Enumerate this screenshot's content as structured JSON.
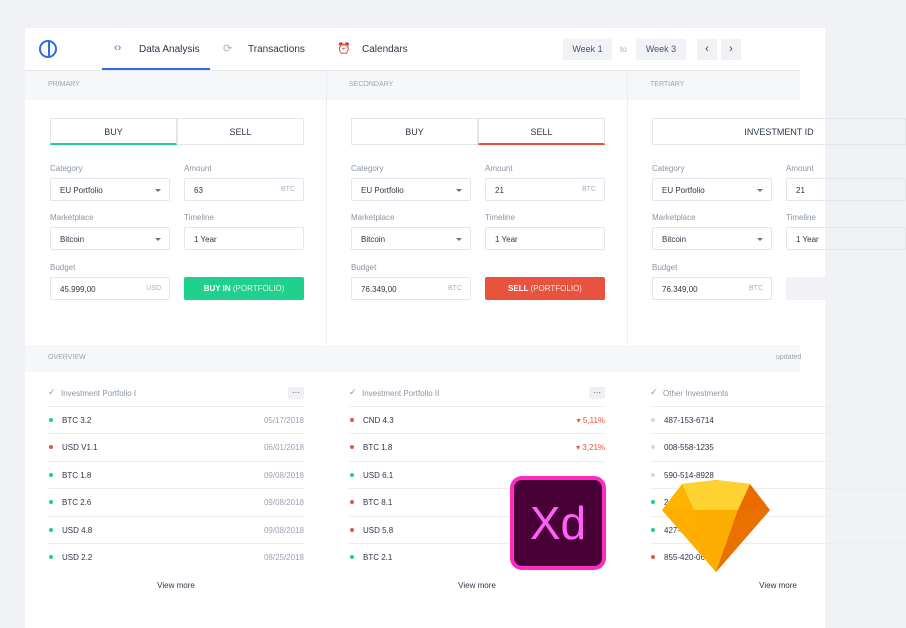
{
  "header": {
    "tabs": [
      "Data Analysis",
      "Transactions",
      "Calendars"
    ],
    "range_from": "Week 1",
    "range_sep": "to",
    "range_to": "Week 3"
  },
  "panels": [
    {
      "label": "PRIMARY",
      "toggle": [
        "BUY",
        "SELL"
      ],
      "category_label": "Category",
      "category": "EU Portfolio",
      "amount_label": "Amount",
      "amount": "63",
      "amount_unit": "BTC",
      "marketplace_label": "Marketplace",
      "marketplace": "Bitcoin",
      "timeline_label": "Timeline",
      "timeline": "1 Year",
      "budget_label": "Budget",
      "budget": "45.999,00",
      "budget_unit": "USD",
      "button": "BUY IN",
      "button_note": "(PORTFOLIO)"
    },
    {
      "label": "SECONDARY",
      "toggle": [
        "BUY",
        "SELL"
      ],
      "category_label": "Category",
      "category": "EU Portfolio",
      "amount_label": "Amount",
      "amount": "21",
      "amount_unit": "BTC",
      "marketplace_label": "Marketplace",
      "marketplace": "Bitcoin",
      "timeline_label": "Timeline",
      "timeline": "1 Year",
      "budget_label": "Budget",
      "budget": "76.349,00",
      "budget_unit": "BTC",
      "button": "SELL",
      "button_note": "(PORTFOLIO)"
    },
    {
      "label": "TERTIARY",
      "toggle": [
        "INVESTMENT ID"
      ],
      "category_label": "Category",
      "category": "EU Portfolio",
      "amount_label": "Amount",
      "amount": "21",
      "marketplace_label": "Marketplace",
      "marketplace": "Bitcoin",
      "timeline_label": "Timeline",
      "timeline": "1 Year",
      "budget_label": "Budget",
      "budget": "76.349,00",
      "budget_unit": "BTC"
    }
  ],
  "overview": {
    "label": "OVERVIEW",
    "note": "updated",
    "more": "View more",
    "lists": [
      {
        "title": "Investment Portfolio I",
        "menu": "···",
        "rows": [
          {
            "name": "BTC 3.2",
            "value": "05/17/2018"
          },
          {
            "name": "USD V1.1",
            "value": "06/01/2018"
          },
          {
            "name": "BTC 1.8",
            "value": "09/08/2018"
          },
          {
            "name": "BTC 2.6",
            "value": "09/08/2018"
          },
          {
            "name": "USD 4.8",
            "value": "09/08/2018"
          },
          {
            "name": "USD 2.2",
            "value": "08/25/2018"
          }
        ]
      },
      {
        "title": "Investment Portfolio II",
        "menu": "···",
        "rows": [
          {
            "name": "CND 4.3",
            "value": "▾ 5,11%"
          },
          {
            "name": "BTC 1.8",
            "value": "▾ 3,21%"
          },
          {
            "name": "USD 6.1"
          },
          {
            "name": "BTC 8.1"
          },
          {
            "name": "USD 5.8"
          },
          {
            "name": "BTC 2.1"
          }
        ]
      },
      {
        "title": "Other Investments",
        "rows": [
          {
            "name": "487-153-6714"
          },
          {
            "name": "008-558-1235"
          },
          {
            "name": "590-514-8928"
          },
          {
            "name": "2"
          },
          {
            "name": "427-6"
          },
          {
            "name": "855-420-066"
          }
        ]
      }
    ]
  },
  "badge": "Xd"
}
